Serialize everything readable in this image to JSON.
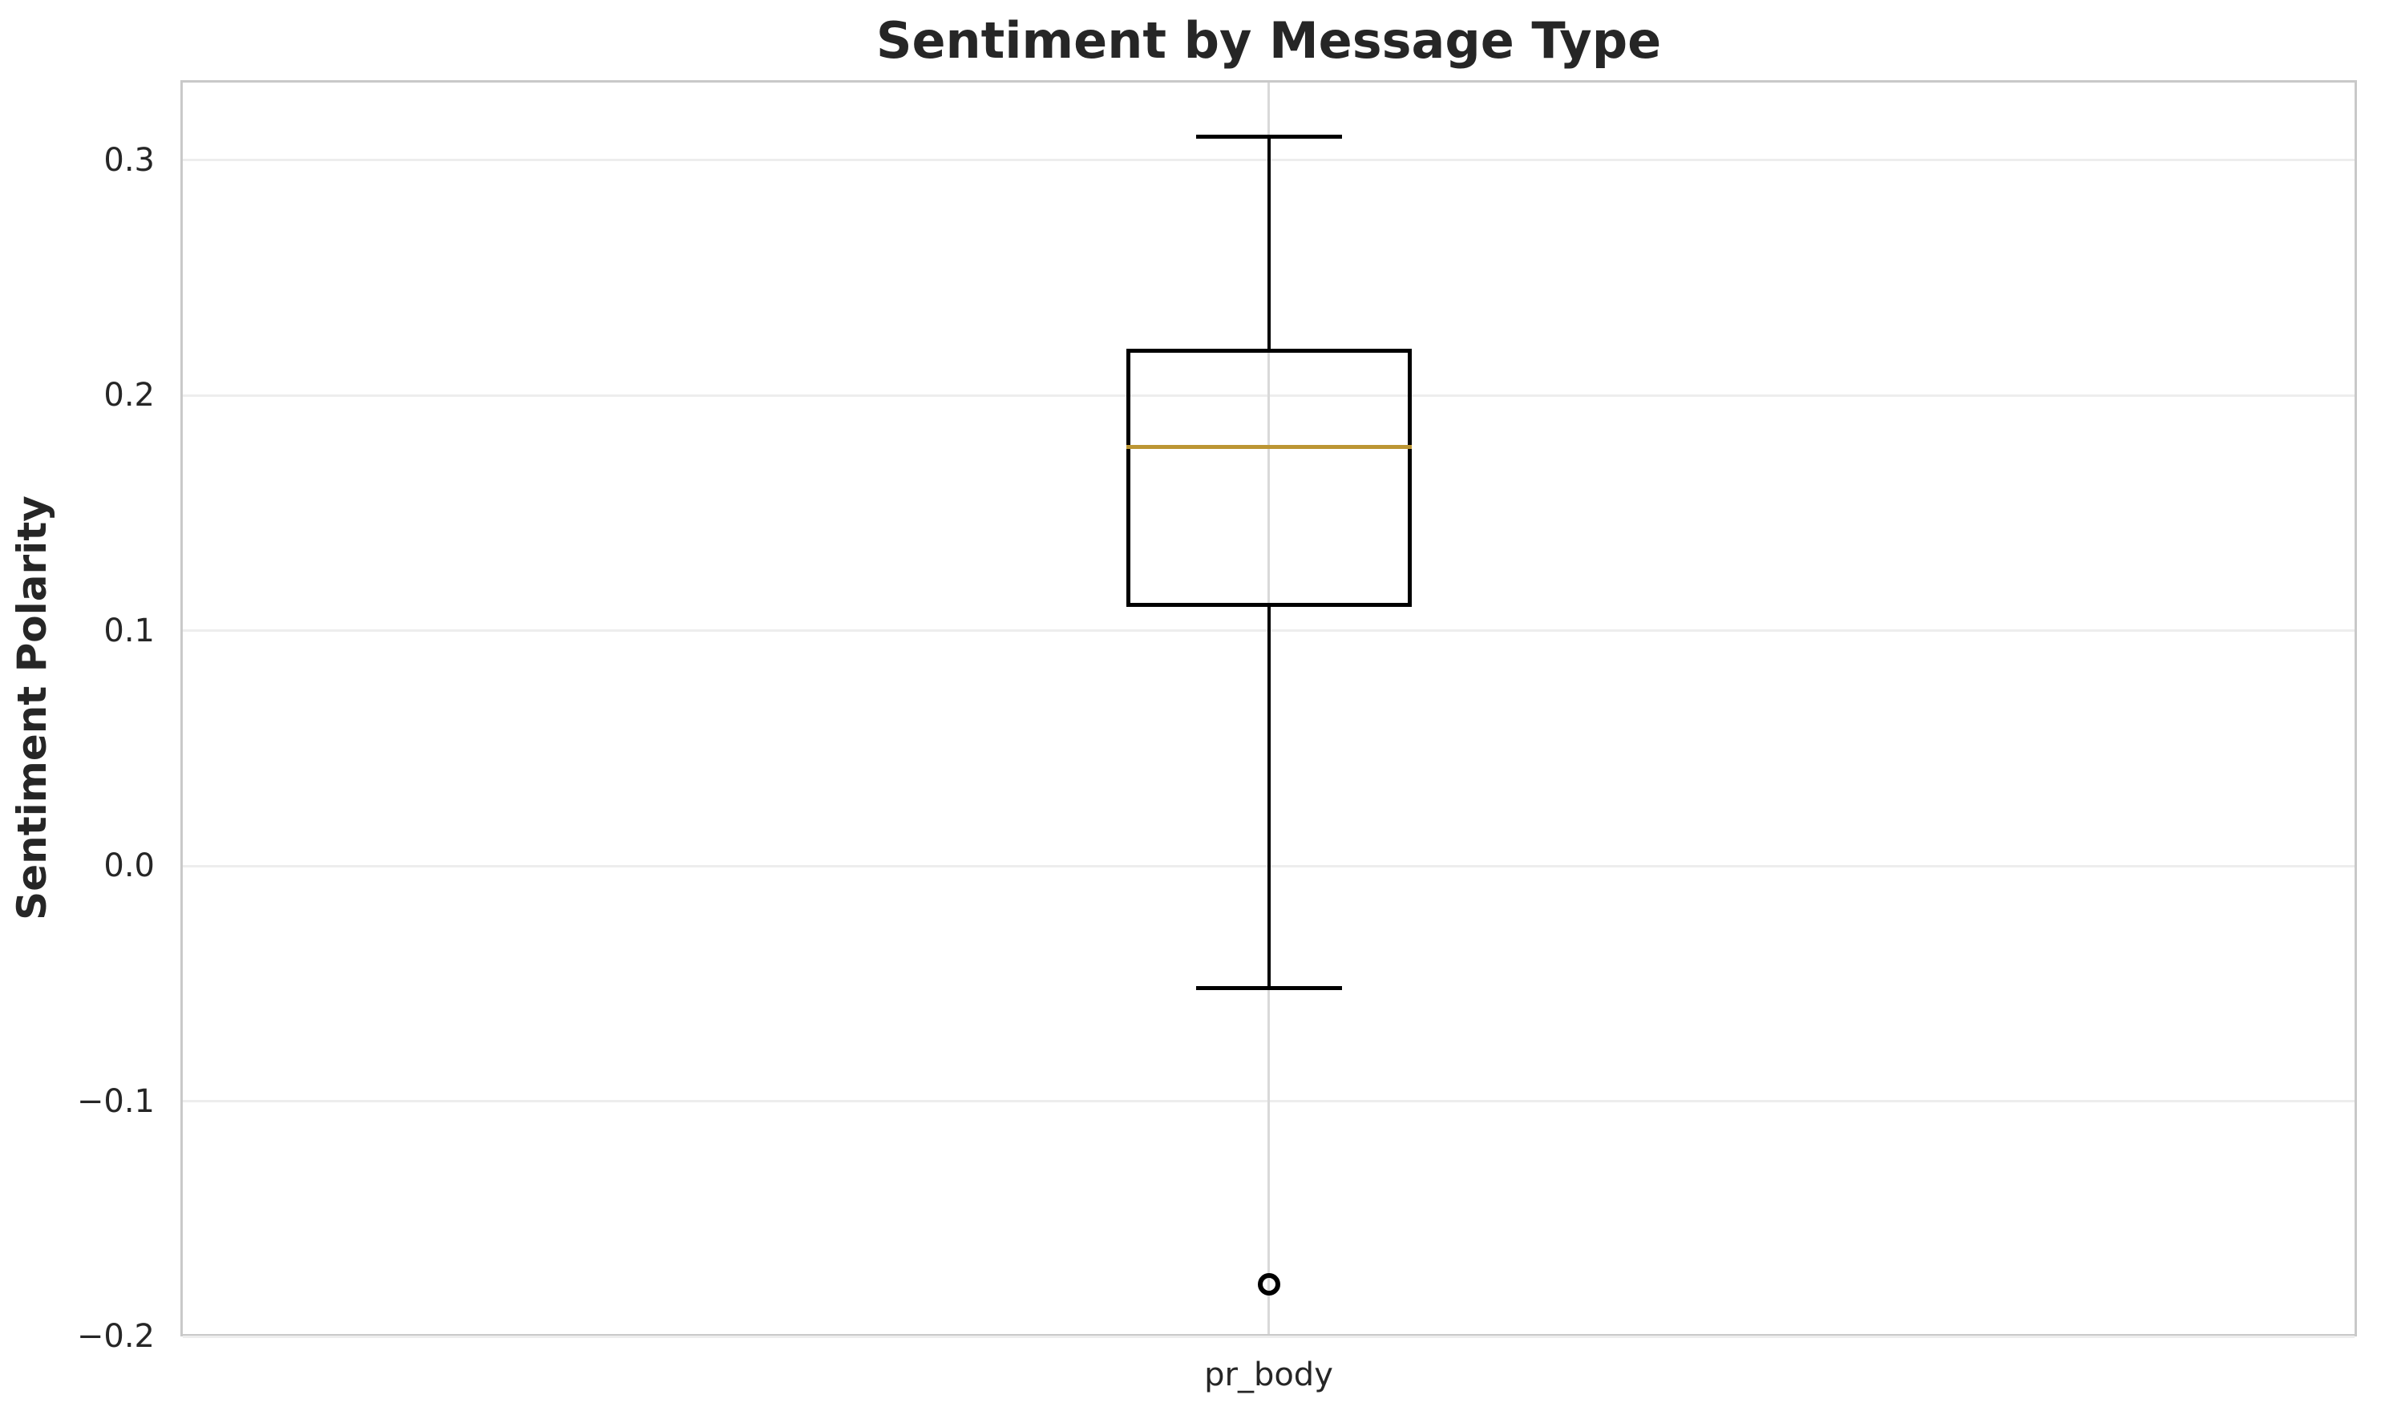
{
  "figure": {
    "title": "Sentiment by Message Type",
    "y_axis_label": "Sentiment Polarity",
    "x_tick_label": "pr_body"
  },
  "chart_data": {
    "type": "boxplot",
    "title": "Sentiment by Message Type",
    "xlabel": "",
    "ylabel": "Sentiment Polarity",
    "categories": [
      "pr_body"
    ],
    "series": [
      {
        "name": "pr_body",
        "whisker_low": -0.052,
        "q1": 0.11,
        "median": 0.178,
        "q3": 0.22,
        "whisker_high": 0.31,
        "outliers": [
          -0.178
        ]
      }
    ],
    "ylim": [
      -0.2,
      0.334
    ],
    "yticks": [
      0.3,
      0.2,
      0.1,
      0.0,
      -0.1,
      -0.2
    ],
    "ytick_labels": [
      "0.3",
      "0.2",
      "0.1",
      "0.0",
      "−0.1",
      "−0.2"
    ],
    "grid": true,
    "legend": "none",
    "colors": {
      "box_edge": "#000000",
      "median": "#bc9634",
      "grid_horizontal": "#ededed",
      "grid_vertical": "#d9d9d9",
      "spine": "#c9c9c9",
      "text": "#262626",
      "background": "#ffffff"
    }
  }
}
